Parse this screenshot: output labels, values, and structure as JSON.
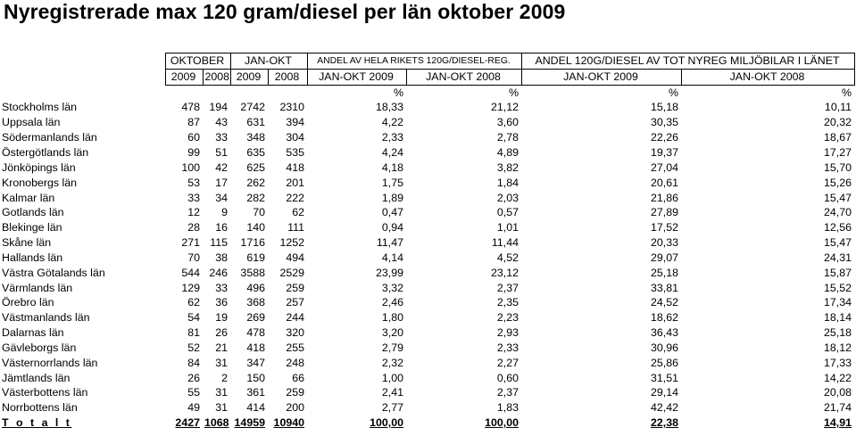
{
  "title": "Nyregistrerade max 120 gram/diesel per län oktober 2009",
  "header": {
    "group_labels": [
      "OKTOBER",
      "JAN-OKT",
      "ANDEL AV HELA RIKETS 120G/DIESEL-REG.",
      "ANDEL 120G/DIESEL AV TOT NYREG MILJÖBILAR I LÄNET"
    ],
    "sub_labels": [
      "2009",
      "2008",
      "2009",
      "2008",
      "JAN-OKT 2009",
      "JAN-OKT 2008",
      "JAN-OKT 2009",
      "JAN-OKT 2008"
    ],
    "percent_labels": [
      "%",
      "%",
      "%",
      "%"
    ]
  },
  "rows": [
    {
      "lan": "Stockholms län",
      "okt2009": "478",
      "okt2008": "194",
      "janokt2009": "2742",
      "janokt2008": "2310",
      "andel_riket_2009": "18,33",
      "andel_riket_2008": "21,12",
      "andel_lan_2009": "15,18",
      "andel_lan_2008": "10,11"
    },
    {
      "lan": "Uppsala län",
      "okt2009": "87",
      "okt2008": "43",
      "janokt2009": "631",
      "janokt2008": "394",
      "andel_riket_2009": "4,22",
      "andel_riket_2008": "3,60",
      "andel_lan_2009": "30,35",
      "andel_lan_2008": "20,32"
    },
    {
      "lan": "Södermanlands län",
      "okt2009": "60",
      "okt2008": "33",
      "janokt2009": "348",
      "janokt2008": "304",
      "andel_riket_2009": "2,33",
      "andel_riket_2008": "2,78",
      "andel_lan_2009": "22,26",
      "andel_lan_2008": "18,67"
    },
    {
      "lan": "Östergötlands län",
      "okt2009": "99",
      "okt2008": "51",
      "janokt2009": "635",
      "janokt2008": "535",
      "andel_riket_2009": "4,24",
      "andel_riket_2008": "4,89",
      "andel_lan_2009": "19,37",
      "andel_lan_2008": "17,27"
    },
    {
      "lan": "Jönköpings län",
      "okt2009": "100",
      "okt2008": "42",
      "janokt2009": "625",
      "janokt2008": "418",
      "andel_riket_2009": "4,18",
      "andel_riket_2008": "3,82",
      "andel_lan_2009": "27,04",
      "andel_lan_2008": "15,70"
    },
    {
      "lan": "Kronobergs län",
      "okt2009": "53",
      "okt2008": "17",
      "janokt2009": "262",
      "janokt2008": "201",
      "andel_riket_2009": "1,75",
      "andel_riket_2008": "1,84",
      "andel_lan_2009": "20,61",
      "andel_lan_2008": "15,26"
    },
    {
      "lan": "Kalmar län",
      "okt2009": "33",
      "okt2008": "34",
      "janokt2009": "282",
      "janokt2008": "222",
      "andel_riket_2009": "1,89",
      "andel_riket_2008": "2,03",
      "andel_lan_2009": "21,86",
      "andel_lan_2008": "15,47"
    },
    {
      "lan": "Gotlands län",
      "okt2009": "12",
      "okt2008": "9",
      "janokt2009": "70",
      "janokt2008": "62",
      "andel_riket_2009": "0,47",
      "andel_riket_2008": "0,57",
      "andel_lan_2009": "27,89",
      "andel_lan_2008": "24,70"
    },
    {
      "lan": "Blekinge län",
      "okt2009": "28",
      "okt2008": "16",
      "janokt2009": "140",
      "janokt2008": "111",
      "andel_riket_2009": "0,94",
      "andel_riket_2008": "1,01",
      "andel_lan_2009": "17,52",
      "andel_lan_2008": "12,56"
    },
    {
      "lan": "Skåne län",
      "okt2009": "271",
      "okt2008": "115",
      "janokt2009": "1716",
      "janokt2008": "1252",
      "andel_riket_2009": "11,47",
      "andel_riket_2008": "11,44",
      "andel_lan_2009": "20,33",
      "andel_lan_2008": "15,47"
    },
    {
      "lan": "Hallands län",
      "okt2009": "70",
      "okt2008": "38",
      "janokt2009": "619",
      "janokt2008": "494",
      "andel_riket_2009": "4,14",
      "andel_riket_2008": "4,52",
      "andel_lan_2009": "29,07",
      "andel_lan_2008": "24,31"
    },
    {
      "lan": "Västra Götalands län",
      "okt2009": "544",
      "okt2008": "246",
      "janokt2009": "3588",
      "janokt2008": "2529",
      "andel_riket_2009": "23,99",
      "andel_riket_2008": "23,12",
      "andel_lan_2009": "25,18",
      "andel_lan_2008": "15,87"
    },
    {
      "lan": "Värmlands län",
      "okt2009": "129",
      "okt2008": "33",
      "janokt2009": "496",
      "janokt2008": "259",
      "andel_riket_2009": "3,32",
      "andel_riket_2008": "2,37",
      "andel_lan_2009": "33,81",
      "andel_lan_2008": "15,52"
    },
    {
      "lan": "Örebro län",
      "okt2009": "62",
      "okt2008": "36",
      "janokt2009": "368",
      "janokt2008": "257",
      "andel_riket_2009": "2,46",
      "andel_riket_2008": "2,35",
      "andel_lan_2009": "24,52",
      "andel_lan_2008": "17,34"
    },
    {
      "lan": "Västmanlands län",
      "okt2009": "54",
      "okt2008": "19",
      "janokt2009": "269",
      "janokt2008": "244",
      "andel_riket_2009": "1,80",
      "andel_riket_2008": "2,23",
      "andel_lan_2009": "18,62",
      "andel_lan_2008": "18,14"
    },
    {
      "lan": "Dalarnas län",
      "okt2009": "81",
      "okt2008": "26",
      "janokt2009": "478",
      "janokt2008": "320",
      "andel_riket_2009": "3,20",
      "andel_riket_2008": "2,93",
      "andel_lan_2009": "36,43",
      "andel_lan_2008": "25,18"
    },
    {
      "lan": "Gävleborgs län",
      "okt2009": "52",
      "okt2008": "21",
      "janokt2009": "418",
      "janokt2008": "255",
      "andel_riket_2009": "2,79",
      "andel_riket_2008": "2,33",
      "andel_lan_2009": "30,96",
      "andel_lan_2008": "18,12"
    },
    {
      "lan": "Västernorrlands län",
      "okt2009": "84",
      "okt2008": "31",
      "janokt2009": "347",
      "janokt2008": "248",
      "andel_riket_2009": "2,32",
      "andel_riket_2008": "2,27",
      "andel_lan_2009": "25,86",
      "andel_lan_2008": "17,33"
    },
    {
      "lan": "Jämtlands län",
      "okt2009": "26",
      "okt2008": "2",
      "janokt2009": "150",
      "janokt2008": "66",
      "andel_riket_2009": "1,00",
      "andel_riket_2008": "0,60",
      "andel_lan_2009": "31,51",
      "andel_lan_2008": "14,22"
    },
    {
      "lan": "Västerbottens län",
      "okt2009": "55",
      "okt2008": "31",
      "janokt2009": "361",
      "janokt2008": "259",
      "andel_riket_2009": "2,41",
      "andel_riket_2008": "2,37",
      "andel_lan_2009": "29,14",
      "andel_lan_2008": "20,08"
    },
    {
      "lan": "Norrbottens län",
      "okt2009": "49",
      "okt2008": "31",
      "janokt2009": "414",
      "janokt2008": "200",
      "andel_riket_2009": "2,77",
      "andel_riket_2008": "1,83",
      "andel_lan_2009": "42,42",
      "andel_lan_2008": "21,74"
    }
  ],
  "total": {
    "lan": "T o t a l t",
    "okt2009": "2427",
    "okt2008": "1068",
    "janokt2009": "14959",
    "janokt2008": "10940",
    "andel_riket_2009": "100,00",
    "andel_riket_2008": "100,00",
    "andel_lan_2009": "22,38",
    "andel_lan_2008": "14,91"
  }
}
